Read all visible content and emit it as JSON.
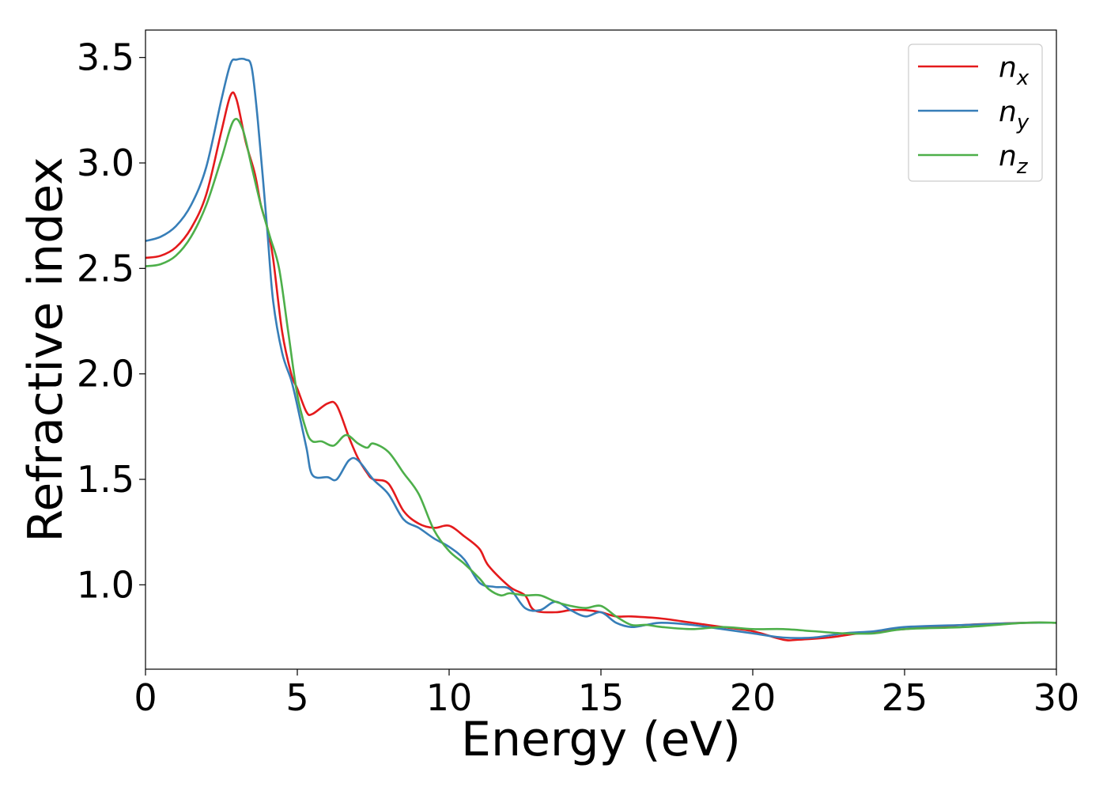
{
  "chart_data": {
    "type": "line",
    "title": "",
    "xlabel": "Energy (eV)",
    "ylabel": "Refractive index",
    "xlim": [
      0,
      30
    ],
    "ylim": [
      0.6,
      3.63
    ],
    "xticks": [
      "0",
      "5",
      "10",
      "15",
      "20",
      "25",
      "30"
    ],
    "yticks": [
      "1.0",
      "1.5",
      "2.0",
      "2.5",
      "3.0",
      "3.5"
    ],
    "grid": false,
    "legend_position": "top-right",
    "series": [
      {
        "name": "n",
        "subscript": "x",
        "color": "#e41a1c",
        "points": [
          [
            0,
            2.55
          ],
          [
            0.5,
            2.56
          ],
          [
            1,
            2.6
          ],
          [
            1.5,
            2.69
          ],
          [
            2,
            2.85
          ],
          [
            2.5,
            3.15
          ],
          [
            2.8,
            3.32
          ],
          [
            3.0,
            3.3
          ],
          [
            3.3,
            3.1
          ],
          [
            3.6,
            2.95
          ],
          [
            3.8,
            2.8
          ],
          [
            4.0,
            2.7
          ],
          [
            4.2,
            2.55
          ],
          [
            4.5,
            2.2
          ],
          [
            4.8,
            2.0
          ],
          [
            5.0,
            1.93
          ],
          [
            5.3,
            1.82
          ],
          [
            5.5,
            1.81
          ],
          [
            6.0,
            1.86
          ],
          [
            6.3,
            1.85
          ],
          [
            6.7,
            1.7
          ],
          [
            7.0,
            1.6
          ],
          [
            7.3,
            1.53
          ],
          [
            7.5,
            1.5
          ],
          [
            8.0,
            1.48
          ],
          [
            8.5,
            1.35
          ],
          [
            9.0,
            1.29
          ],
          [
            9.5,
            1.27
          ],
          [
            10.0,
            1.28
          ],
          [
            10.5,
            1.23
          ],
          [
            11.0,
            1.17
          ],
          [
            11.3,
            1.09
          ],
          [
            12.0,
            0.99
          ],
          [
            12.5,
            0.95
          ],
          [
            12.8,
            0.88
          ],
          [
            13.5,
            0.87
          ],
          [
            14.0,
            0.88
          ],
          [
            14.5,
            0.88
          ],
          [
            15.0,
            0.87
          ],
          [
            15.5,
            0.85
          ],
          [
            16.0,
            0.85
          ],
          [
            17.0,
            0.84
          ],
          [
            18.0,
            0.82
          ],
          [
            19.0,
            0.8
          ],
          [
            20.0,
            0.78
          ],
          [
            21.0,
            0.74
          ],
          [
            21.5,
            0.74
          ],
          [
            22.5,
            0.75
          ],
          [
            23.5,
            0.77
          ],
          [
            25.0,
            0.79
          ],
          [
            27.0,
            0.81
          ],
          [
            29.0,
            0.82
          ],
          [
            30.0,
            0.82
          ]
        ]
      },
      {
        "name": "n",
        "subscript": "y",
        "color": "#377eb8",
        "points": [
          [
            0,
            2.63
          ],
          [
            0.5,
            2.65
          ],
          [
            1,
            2.7
          ],
          [
            1.5,
            2.8
          ],
          [
            2,
            2.98
          ],
          [
            2.5,
            3.3
          ],
          [
            2.8,
            3.47
          ],
          [
            3.0,
            3.49
          ],
          [
            3.3,
            3.49
          ],
          [
            3.5,
            3.45
          ],
          [
            3.7,
            3.2
          ],
          [
            4.0,
            2.7
          ],
          [
            4.2,
            2.35
          ],
          [
            4.5,
            2.1
          ],
          [
            4.8,
            1.97
          ],
          [
            5.0,
            1.85
          ],
          [
            5.3,
            1.65
          ],
          [
            5.5,
            1.52
          ],
          [
            6.0,
            1.51
          ],
          [
            6.3,
            1.5
          ],
          [
            6.7,
            1.59
          ],
          [
            7.0,
            1.59
          ],
          [
            7.5,
            1.5
          ],
          [
            8.0,
            1.43
          ],
          [
            8.5,
            1.31
          ],
          [
            9.0,
            1.27
          ],
          [
            9.5,
            1.22
          ],
          [
            10.0,
            1.18
          ],
          [
            10.5,
            1.12
          ],
          [
            11.0,
            1.01
          ],
          [
            11.5,
            0.99
          ],
          [
            12.0,
            0.98
          ],
          [
            12.5,
            0.89
          ],
          [
            13.0,
            0.88
          ],
          [
            13.5,
            0.92
          ],
          [
            14.0,
            0.88
          ],
          [
            14.5,
            0.85
          ],
          [
            15.0,
            0.87
          ],
          [
            15.5,
            0.82
          ],
          [
            16.0,
            0.8
          ],
          [
            16.5,
            0.81
          ],
          [
            17.0,
            0.82
          ],
          [
            18.0,
            0.81
          ],
          [
            19.0,
            0.79
          ],
          [
            20.0,
            0.77
          ],
          [
            21.0,
            0.75
          ],
          [
            22.0,
            0.75
          ],
          [
            23.0,
            0.77
          ],
          [
            24.0,
            0.78
          ],
          [
            25.0,
            0.8
          ],
          [
            27.0,
            0.81
          ],
          [
            29.0,
            0.82
          ],
          [
            30.0,
            0.82
          ]
        ]
      },
      {
        "name": "n",
        "subscript": "z",
        "color": "#4daf4a",
        "points": [
          [
            0,
            2.51
          ],
          [
            0.5,
            2.52
          ],
          [
            1,
            2.56
          ],
          [
            1.5,
            2.65
          ],
          [
            2,
            2.8
          ],
          [
            2.5,
            3.02
          ],
          [
            2.9,
            3.2
          ],
          [
            3.2,
            3.16
          ],
          [
            3.5,
            2.98
          ],
          [
            3.8,
            2.8
          ],
          [
            4.1,
            2.65
          ],
          [
            4.4,
            2.5
          ],
          [
            4.7,
            2.2
          ],
          [
            5.0,
            1.9
          ],
          [
            5.3,
            1.73
          ],
          [
            5.5,
            1.68
          ],
          [
            5.8,
            1.68
          ],
          [
            6.2,
            1.66
          ],
          [
            6.6,
            1.71
          ],
          [
            7.0,
            1.67
          ],
          [
            7.3,
            1.65
          ],
          [
            7.5,
            1.67
          ],
          [
            8.0,
            1.63
          ],
          [
            8.5,
            1.53
          ],
          [
            9.0,
            1.43
          ],
          [
            9.5,
            1.26
          ],
          [
            10.0,
            1.16
          ],
          [
            10.5,
            1.1
          ],
          [
            11.0,
            1.03
          ],
          [
            11.3,
            0.98
          ],
          [
            11.7,
            0.95
          ],
          [
            12.0,
            0.96
          ],
          [
            12.5,
            0.95
          ],
          [
            13.0,
            0.95
          ],
          [
            13.5,
            0.92
          ],
          [
            14.0,
            0.9
          ],
          [
            14.5,
            0.89
          ],
          [
            15.0,
            0.9
          ],
          [
            15.5,
            0.85
          ],
          [
            16.0,
            0.81
          ],
          [
            16.5,
            0.81
          ],
          [
            17.0,
            0.8
          ],
          [
            18.0,
            0.79
          ],
          [
            19.0,
            0.8
          ],
          [
            20.0,
            0.79
          ],
          [
            21.0,
            0.79
          ],
          [
            22.0,
            0.78
          ],
          [
            23.0,
            0.77
          ],
          [
            24.0,
            0.77
          ],
          [
            25.0,
            0.79
          ],
          [
            27.0,
            0.8
          ],
          [
            29.0,
            0.82
          ],
          [
            30.0,
            0.82
          ]
        ]
      }
    ]
  }
}
